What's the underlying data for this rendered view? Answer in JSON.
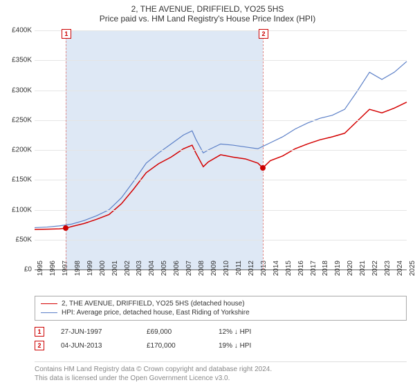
{
  "title": "2, THE AVENUE, DRIFFIELD, YO25 5HS",
  "subtitle": "Price paid vs. HM Land Registry's House Price Index (HPI)",
  "chart": {
    "type": "line",
    "background_color": "#ffffff",
    "grid_color": "#e5e5e5",
    "axis_color": "#666666",
    "label_fontsize": 10,
    "title_fontsize": 12,
    "x": {
      "min": 1995,
      "max": 2025,
      "tick_step": 1,
      "labels": [
        "1995",
        "1996",
        "1997",
        "1998",
        "1999",
        "2000",
        "2001",
        "2002",
        "2003",
        "2004",
        "2005",
        "2006",
        "2007",
        "2008",
        "2009",
        "2010",
        "2011",
        "2012",
        "2013",
        "2014",
        "2015",
        "2016",
        "2017",
        "2018",
        "2019",
        "2020",
        "2021",
        "2022",
        "2023",
        "2024",
        "2025"
      ]
    },
    "y": {
      "min": 0,
      "max": 400000,
      "tick_step": 50000,
      "labels": [
        "£0",
        "£50K",
        "£100K",
        "£150K",
        "£200K",
        "£250K",
        "£300K",
        "£350K",
        "£400K"
      ]
    },
    "band": {
      "from": 1997.5,
      "to": 2013.4,
      "color": "#dee8f5"
    },
    "markers": [
      {
        "id": "1",
        "x": 1997.5,
        "y": 69000,
        "box_top": true
      },
      {
        "id": "2",
        "x": 2013.4,
        "y": 170000,
        "box_top": true
      }
    ],
    "marker_line_color": "#dd8888",
    "marker_box_border": "#cc0000",
    "dot_color": "#cc0000",
    "series": [
      {
        "name": "price_paid",
        "label": "2, THE AVENUE, DRIFFIELD, YO25 5HS (detached house)",
        "color": "#d40000",
        "width": 1.5,
        "points": [
          [
            1995,
            67000
          ],
          [
            1996,
            67500
          ],
          [
            1997,
            68000
          ],
          [
            1997.5,
            69000
          ],
          [
            1998,
            72000
          ],
          [
            1999,
            77000
          ],
          [
            2000,
            84000
          ],
          [
            2001,
            92000
          ],
          [
            2002,
            110000
          ],
          [
            2003,
            135000
          ],
          [
            2004,
            162000
          ],
          [
            2005,
            177000
          ],
          [
            2006,
            188000
          ],
          [
            2007,
            202000
          ],
          [
            2007.7,
            208000
          ],
          [
            2008,
            195000
          ],
          [
            2008.6,
            172000
          ],
          [
            2009,
            180000
          ],
          [
            2010,
            192000
          ],
          [
            2011,
            188000
          ],
          [
            2012,
            185000
          ],
          [
            2013,
            178000
          ],
          [
            2013.4,
            170000
          ],
          [
            2014,
            182000
          ],
          [
            2015,
            190000
          ],
          [
            2016,
            202000
          ],
          [
            2017,
            210000
          ],
          [
            2018,
            217000
          ],
          [
            2019,
            222000
          ],
          [
            2020,
            228000
          ],
          [
            2021,
            248000
          ],
          [
            2022,
            268000
          ],
          [
            2023,
            262000
          ],
          [
            2024,
            270000
          ],
          [
            2025,
            280000
          ]
        ]
      },
      {
        "name": "hpi",
        "label": "HPI: Average price, detached house, East Riding of Yorkshire",
        "color": "#5b7fc7",
        "width": 1.2,
        "points": [
          [
            1995,
            70000
          ],
          [
            1996,
            71000
          ],
          [
            1997,
            73000
          ],
          [
            1998,
            76000
          ],
          [
            1999,
            82000
          ],
          [
            2000,
            90000
          ],
          [
            2001,
            100000
          ],
          [
            2002,
            120000
          ],
          [
            2003,
            148000
          ],
          [
            2004,
            178000
          ],
          [
            2005,
            195000
          ],
          [
            2006,
            210000
          ],
          [
            2007,
            225000
          ],
          [
            2007.7,
            232000
          ],
          [
            2008,
            218000
          ],
          [
            2008.6,
            195000
          ],
          [
            2009,
            200000
          ],
          [
            2010,
            210000
          ],
          [
            2011,
            208000
          ],
          [
            2012,
            205000
          ],
          [
            2013,
            202000
          ],
          [
            2014,
            212000
          ],
          [
            2015,
            222000
          ],
          [
            2016,
            235000
          ],
          [
            2017,
            245000
          ],
          [
            2018,
            253000
          ],
          [
            2019,
            258000
          ],
          [
            2020,
            268000
          ],
          [
            2021,
            298000
          ],
          [
            2022,
            330000
          ],
          [
            2023,
            318000
          ],
          [
            2024,
            330000
          ],
          [
            2025,
            348000
          ]
        ]
      }
    ]
  },
  "legend": {
    "rows": [
      {
        "color": "#d40000",
        "text": "2, THE AVENUE, DRIFFIELD, YO25 5HS (detached house)"
      },
      {
        "color": "#5b7fc7",
        "text": "HPI: Average price, detached house, East Riding of Yorkshire"
      }
    ]
  },
  "sales": [
    {
      "id": "1",
      "date": "27-JUN-1997",
      "price": "£69,000",
      "delta": "12% ↓ HPI"
    },
    {
      "id": "2",
      "date": "04-JUN-2013",
      "price": "£170,000",
      "delta": "19% ↓ HPI"
    }
  ],
  "attribution": {
    "line1": "Contains HM Land Registry data © Crown copyright and database right 2024.",
    "line2": "This data is licensed under the Open Government Licence v3.0."
  }
}
